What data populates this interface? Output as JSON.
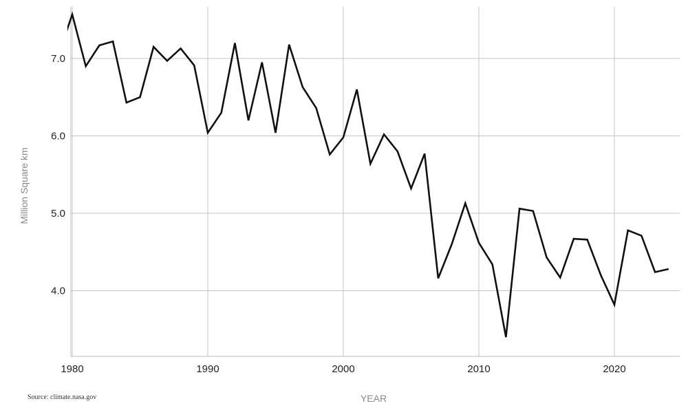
{
  "chart_data": {
    "type": "line",
    "title": "",
    "xlabel": "YEAR",
    "ylabel": "Million Square km",
    "xlim": [
      1980,
      2024.5
    ],
    "ylim": [
      3.2,
      7.6
    ],
    "x_ticks": [
      1980,
      1990,
      2000,
      2010,
      2020
    ],
    "x_tick_labels": [
      "1980",
      "1990",
      "2000",
      "2010",
      "2020"
    ],
    "y_ticks": [
      4.0,
      5.0,
      6.0,
      7.0
    ],
    "y_tick_labels": [
      "4.0",
      "5.0",
      "6.0",
      "7.0"
    ],
    "grid": true,
    "line_color": "#111111",
    "x": [
      1979,
      1980,
      1981,
      1982,
      1983,
      1984,
      1985,
      1986,
      1987,
      1988,
      1989,
      1990,
      1991,
      1992,
      1993,
      1994,
      1995,
      1996,
      1997,
      1998,
      1999,
      2000,
      2001,
      2002,
      2003,
      2004,
      2005,
      2006,
      2007,
      2008,
      2009,
      2010,
      2011,
      2012,
      2013,
      2014,
      2015,
      2016,
      2017,
      2018,
      2019,
      2020,
      2021,
      2022,
      2023,
      2024
    ],
    "values": [
      7.05,
      7.57,
      6.9,
      7.17,
      7.22,
      6.43,
      6.5,
      7.15,
      6.97,
      7.13,
      6.91,
      6.04,
      6.3,
      7.2,
      6.2,
      6.95,
      6.04,
      7.18,
      6.63,
      6.36,
      5.76,
      5.98,
      6.6,
      5.64,
      6.02,
      5.8,
      5.32,
      5.77,
      4.16,
      4.6,
      5.13,
      4.62,
      4.34,
      3.4,
      5.06,
      5.03,
      4.43,
      4.17,
      4.67,
      4.66,
      4.2,
      3.82,
      4.78,
      4.71,
      4.24,
      4.28
    ]
  },
  "footer": {
    "source": "Source: climate.nasa.gov"
  }
}
